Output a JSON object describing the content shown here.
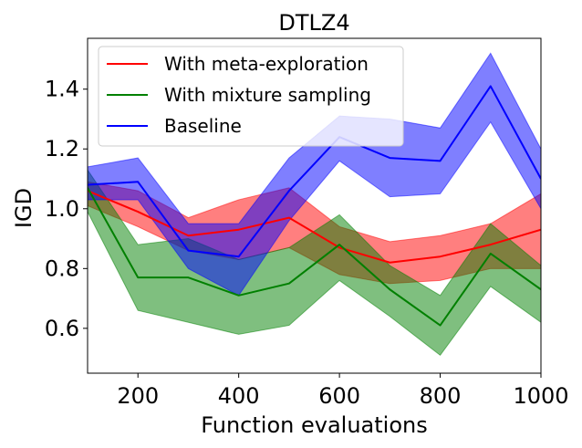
{
  "chart_data": {
    "type": "line",
    "title": "DTLZ4",
    "xlabel": "Function evaluations",
    "ylabel": "IGD",
    "xlim": [
      100,
      1000
    ],
    "ylim": [
      0.45,
      1.57
    ],
    "xticks": [
      200,
      400,
      600,
      800,
      1000
    ],
    "yticks": [
      0.6,
      0.8,
      1.0,
      1.2,
      1.4
    ],
    "xtick_labels": [
      "200",
      "400",
      "600",
      "800",
      "1000"
    ],
    "ytick_labels": [
      "0.6",
      "0.8",
      "1.0",
      "1.2",
      "1.4"
    ],
    "legend_position": "upper-left",
    "x": [
      100,
      200,
      300,
      400,
      500,
      600,
      700,
      800,
      900,
      1000
    ],
    "series": [
      {
        "name": "With meta-exploration",
        "color": "#ff0000",
        "values": [
          1.06,
          0.99,
          0.91,
          0.93,
          0.97,
          0.87,
          0.82,
          0.84,
          0.88,
          0.93
        ],
        "lower": [
          1.01,
          0.94,
          0.86,
          0.83,
          0.87,
          0.78,
          0.75,
          0.76,
          0.8,
          0.8
        ],
        "upper": [
          1.09,
          1.06,
          0.97,
          1.03,
          1.07,
          0.94,
          0.89,
          0.91,
          0.95,
          1.05
        ]
      },
      {
        "name": "With mixture sampling",
        "color": "#008000",
        "values": [
          1.07,
          0.77,
          0.77,
          0.71,
          0.75,
          0.88,
          0.73,
          0.61,
          0.85,
          0.73
        ],
        "lower": [
          0.99,
          0.66,
          0.62,
          0.58,
          0.61,
          0.76,
          0.64,
          0.51,
          0.74,
          0.62
        ],
        "upper": [
          1.13,
          0.88,
          0.9,
          0.83,
          0.87,
          0.98,
          0.81,
          0.71,
          0.95,
          0.81
        ]
      },
      {
        "name": "Baseline",
        "color": "#0000ff",
        "values": [
          1.08,
          1.09,
          0.86,
          0.84,
          1.06,
          1.24,
          1.17,
          1.16,
          1.41,
          1.1
        ],
        "lower": [
          1.03,
          1.03,
          0.8,
          0.71,
          0.96,
          1.16,
          1.04,
          1.05,
          1.29,
          1.0
        ],
        "upper": [
          1.14,
          1.17,
          0.95,
          0.95,
          1.17,
          1.31,
          1.3,
          1.27,
          1.52,
          1.2
        ]
      }
    ]
  }
}
